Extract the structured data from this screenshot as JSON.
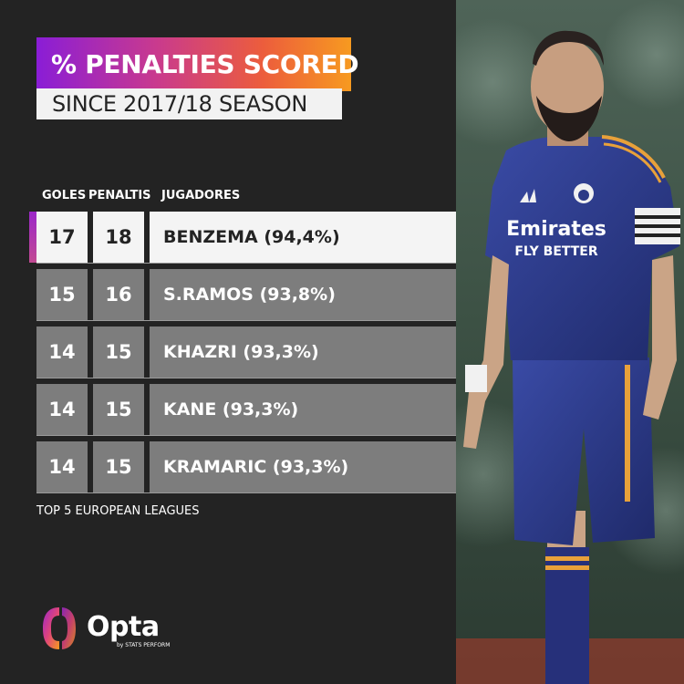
{
  "title": "% PENALTIES SCORED",
  "subtitle": "SINCE 2017/18 SEASON",
  "columns": {
    "goals": "GOLES",
    "penalties": "PENALTIS",
    "players": "JUGADORES"
  },
  "chart_data": {
    "type": "table",
    "title": "% PENALTIES SCORED",
    "subtitle": "SINCE 2017/18 SEASON",
    "headers": [
      "GOLES",
      "PENALTIS",
      "JUGADORES"
    ],
    "rows": [
      {
        "goals": "17",
        "penalties": "18",
        "player": "BENZEMA (94,4%)",
        "highlight": true
      },
      {
        "goals": "15",
        "penalties": "16",
        "player": "S.RAMOS (93,8%)",
        "highlight": false
      },
      {
        "goals": "14",
        "penalties": "15",
        "player": "KHAZRI (93,3%)",
        "highlight": false
      },
      {
        "goals": "14",
        "penalties": "15",
        "player": "KANE (93,3%)",
        "highlight": false
      },
      {
        "goals": "14",
        "penalties": "15",
        "player": "KRAMARIC (93,3%)",
        "highlight": false
      }
    ]
  },
  "footnote": "TOP 5 EUROPEAN LEAGUES",
  "brand": {
    "name": "Opta",
    "byline": "by STATS PERFORM"
  },
  "photo": {
    "jersey_sponsor_line1": "Emirates",
    "jersey_sponsor_line2": "FLY BETTER"
  },
  "colors": {
    "background": "#232323",
    "gradient_start": "#8a1dd6",
    "gradient_end": "#f79a20",
    "highlight_row": "#f4f4f4",
    "row": "#7d7d7d",
    "kit": "#2c3a86",
    "kit_stripe": "#e8a13a"
  }
}
